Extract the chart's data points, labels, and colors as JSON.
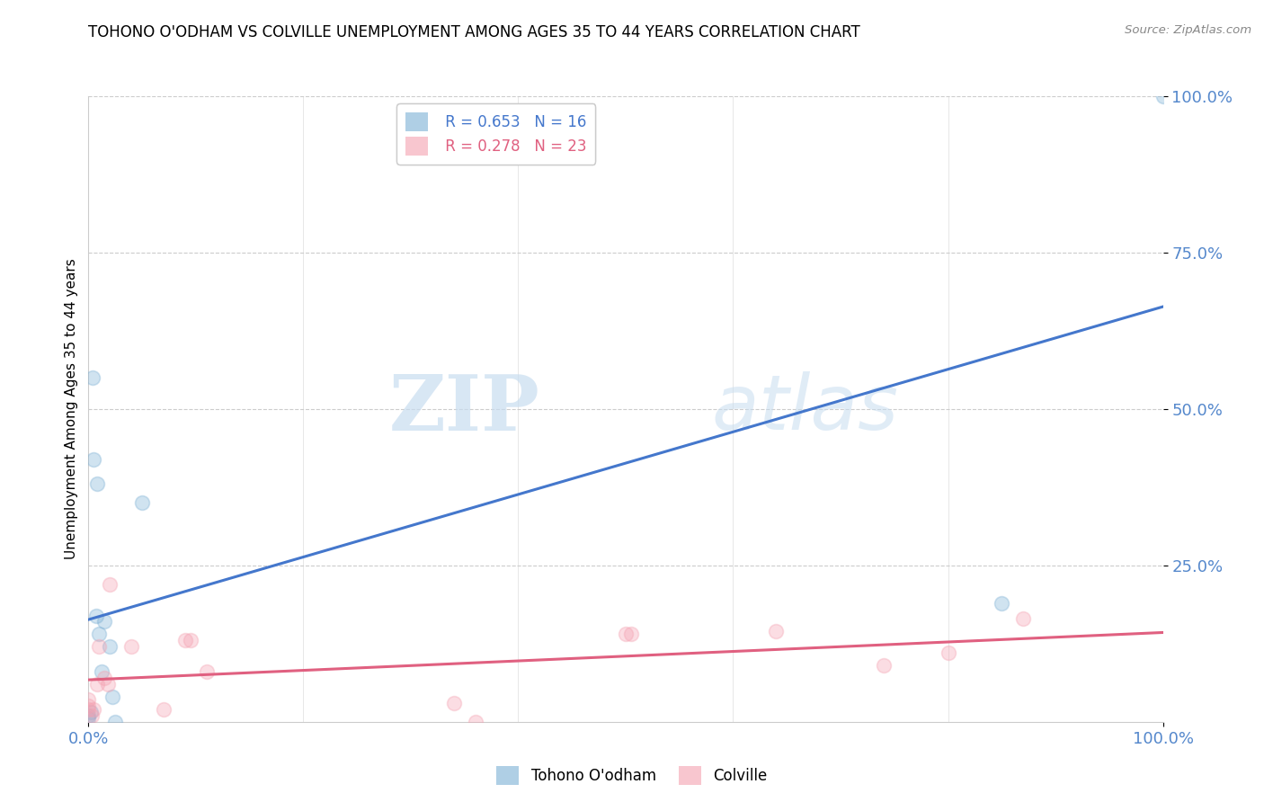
{
  "title": "TOHONO O'ODHAM VS COLVILLE UNEMPLOYMENT AMONG AGES 35 TO 44 YEARS CORRELATION CHART",
  "source": "Source: ZipAtlas.com",
  "ylabel": "Unemployment Among Ages 35 to 44 years",
  "xlim": [
    0.0,
    1.0
  ],
  "ylim": [
    0.0,
    1.0
  ],
  "xtick_labels": [
    "0.0%",
    "100.0%"
  ],
  "xtick_positions": [
    0.0,
    1.0
  ],
  "ytick_labels": [
    "100.0%",
    "75.0%",
    "50.0%",
    "25.0%"
  ],
  "ytick_positions": [
    1.0,
    0.75,
    0.5,
    0.25
  ],
  "watermark_zip": "ZIP",
  "watermark_atlas": "atlas",
  "tohono_color": "#7bafd4",
  "colville_color": "#f4a0b0",
  "tohono_line_color": "#4477cc",
  "colville_line_color": "#e06080",
  "tohono_label": "Tohono O'odham",
  "colville_label": "Colville",
  "tohono_R": "0.653",
  "tohono_N": "16",
  "colville_R": "0.278",
  "colville_N": "23",
  "tohono_points_x": [
    0.0,
    0.0,
    0.002,
    0.004,
    0.005,
    0.007,
    0.008,
    0.01,
    0.012,
    0.015,
    0.02,
    0.022,
    0.025,
    0.05,
    0.85,
    1.0
  ],
  "tohono_points_y": [
    0.01,
    0.005,
    0.015,
    0.55,
    0.42,
    0.17,
    0.38,
    0.14,
    0.08,
    0.16,
    0.12,
    0.04,
    0.0,
    0.35,
    0.19,
    1.0
  ],
  "colville_points_x": [
    0.0,
    0.0,
    0.0,
    0.003,
    0.005,
    0.008,
    0.01,
    0.015,
    0.018,
    0.02,
    0.04,
    0.07,
    0.09,
    0.095,
    0.11,
    0.34,
    0.36,
    0.5,
    0.505,
    0.64,
    0.74,
    0.8,
    0.87
  ],
  "colville_points_y": [
    0.02,
    0.025,
    0.035,
    0.01,
    0.02,
    0.06,
    0.12,
    0.07,
    0.06,
    0.22,
    0.12,
    0.02,
    0.13,
    0.13,
    0.08,
    0.03,
    0.0,
    0.14,
    0.14,
    0.145,
    0.09,
    0.11,
    0.165
  ],
  "grid_color": "#cccccc",
  "background_color": "#ffffff",
  "marker_size": 130,
  "marker_alpha": 0.35,
  "line_width": 2.2,
  "tick_color": "#5588cc"
}
